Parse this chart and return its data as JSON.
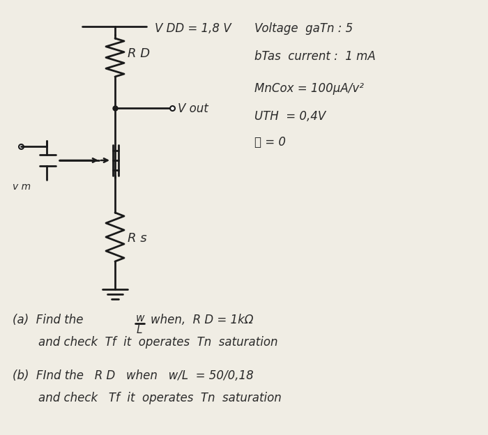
{
  "background_color": "#f0ede4",
  "circuit": {
    "vdd_label": "V DD = 1,8 V",
    "rd_label": "R D",
    "vout_label": "V out",
    "vin_label": "v m",
    "rs_label": "R s"
  },
  "specs": [
    "Voltage  gaTn : 5",
    "bTas  current :  1 mA",
    "MnCox = 100μA/v²",
    "UTH  = 0,4V",
    "笿 = 0"
  ],
  "text_color": "#2a2a2a",
  "line_color": "#1a1a1a",
  "part_a_line1_pre": "(a)  Find the",
  "part_a_wl_w": "w",
  "part_a_wl_l": "L",
  "part_a_line1_post": "when,  R D = 1kΩ",
  "part_a_line2": "     and check  Tf  it  operates  Tn  saturation",
  "part_b_line1": "(b)  FInd the   R D   when   w/L  = 50/0,18",
  "part_b_line2": "     and check   Tf  it  operates  Tn  saturation"
}
